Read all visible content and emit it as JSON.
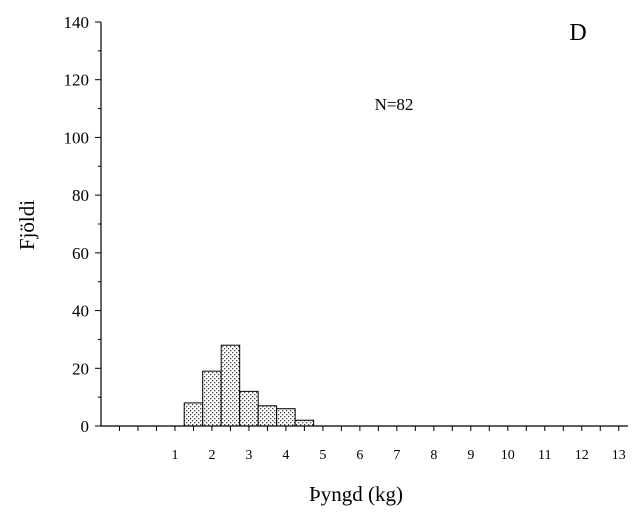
{
  "chart_data": {
    "type": "bar",
    "panel_label": "D",
    "annotation": "N=82",
    "xlabel": "Þyngd (kg)",
    "ylabel": "Fjöldi",
    "ylim": [
      0,
      140
    ],
    "y_ticks": [
      "0",
      "20",
      "40",
      "60",
      "80",
      "100",
      "120",
      "140"
    ],
    "xlim": [
      -1,
      13.25
    ],
    "x_ticks": [
      "1",
      "2",
      "3",
      "4",
      "5",
      "6",
      "7",
      "8",
      "9",
      "10",
      "11",
      "12",
      "13"
    ],
    "bin_width": 0.5,
    "bins": [
      {
        "start": 1.25,
        "end": 1.75,
        "value": 8
      },
      {
        "start": 1.75,
        "end": 2.25,
        "value": 19
      },
      {
        "start": 2.25,
        "end": 2.75,
        "value": 28
      },
      {
        "start": 2.75,
        "end": 3.25,
        "value": 12
      },
      {
        "start": 3.25,
        "end": 3.75,
        "value": 7
      },
      {
        "start": 3.75,
        "end": 4.25,
        "value": 6
      },
      {
        "start": 4.25,
        "end": 4.75,
        "value": 2
      }
    ],
    "fill": "stippled",
    "grid": false,
    "legend": "none"
  }
}
